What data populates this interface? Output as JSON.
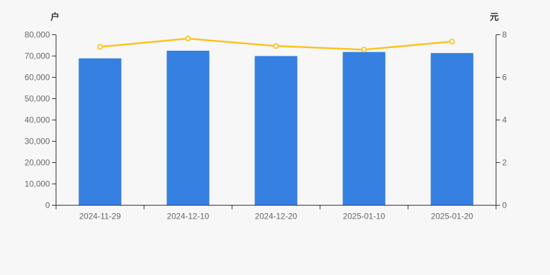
{
  "chart_data": {
    "type": "bar",
    "title": "",
    "categories": [
      "2024-11-29",
      "2024-12-10",
      "2024-12-20",
      "2025-01-10",
      "2025-01-20"
    ],
    "series": [
      {
        "name": "households-bar-series",
        "type": "bar",
        "y_axis": "left",
        "color": "#3580E0",
        "values": [
          68900,
          72500,
          70000,
          71900,
          71400
        ]
      },
      {
        "name": "price-line-series",
        "type": "line",
        "y_axis": "right",
        "color": "#FBC31B",
        "marker_fill": "#FFFFFF",
        "values": [
          7.43,
          7.82,
          7.47,
          7.3,
          7.68
        ]
      }
    ],
    "left_axis": {
      "name": "户",
      "min": 0,
      "max": 80000,
      "tick_labels": [
        "0",
        "10,000",
        "20,000",
        "30,000",
        "40,000",
        "50,000",
        "60,000",
        "70,000",
        "80,000"
      ]
    },
    "right_axis": {
      "name": "元",
      "min": 0,
      "max": 8,
      "tick_labels": [
        "0",
        "2",
        "4",
        "6",
        "8"
      ]
    },
    "grid": false,
    "legend_visible": false
  },
  "style": {
    "background": "#F7F7F7",
    "axis_color": "#333333",
    "tick_label_color": "#666666",
    "axis_name_color": "#333333"
  }
}
